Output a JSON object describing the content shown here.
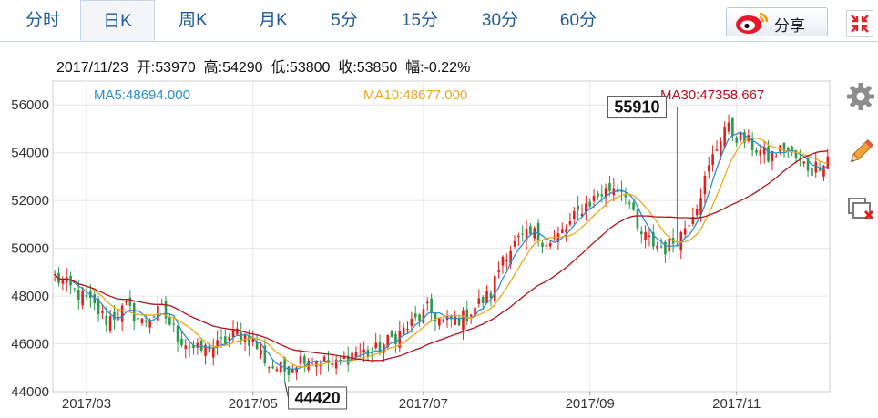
{
  "tabs": [
    {
      "label": "分时",
      "active": false
    },
    {
      "label": "日K",
      "active": true
    },
    {
      "label": "周K",
      "active": false
    },
    {
      "label": "月K",
      "active": false
    },
    {
      "label": "5分",
      "active": false
    },
    {
      "label": "15分",
      "active": false
    },
    {
      "label": "30分",
      "active": false
    },
    {
      "label": "60分",
      "active": false
    }
  ],
  "share": {
    "label": "分享",
    "icon": "weibo-icon"
  },
  "fullscreen": {
    "icon": "fullscreen-icon"
  },
  "side_tools": [
    {
      "icon": "gear-icon"
    },
    {
      "icon": "pencil-icon"
    },
    {
      "icon": "window-close-icon"
    }
  ],
  "info": {
    "date": "2017/11/23",
    "open": "开:53970",
    "high": "高:54290",
    "low": "低:53800",
    "close": "收:53850",
    "change": "幅:-0.22%"
  },
  "colors": {
    "up": "#e0201f",
    "down": "#2a9a4a",
    "ma5": "#2a8fc7",
    "ma10": "#e8a91d",
    "ma30": "#b0131d",
    "grid": "#e6e6e6",
    "tab_text": "#1f5a9a"
  },
  "chart_data": {
    "type": "candlestick",
    "ma_labels": {
      "ma5": "MA5:48694.000",
      "ma10": "MA10:48677.000",
      "ma30": "MA30:47358.667"
    },
    "y_ticks": [
      56000,
      54000,
      52000,
      50000,
      48000,
      46000,
      44000
    ],
    "ylim": [
      44000,
      57000
    ],
    "x_ticks": [
      "2017/03",
      "2017/05",
      "2017/07",
      "2017/09",
      "2017/11"
    ],
    "x_tick_index": [
      8,
      50,
      93,
      135,
      172
    ],
    "annotations": {
      "high": {
        "label": "55910",
        "index": 157,
        "value": 55910
      },
      "low": {
        "label": "44420",
        "index": 58,
        "value": 44420
      }
    },
    "anchors": [
      [
        0,
        48800
      ],
      [
        5,
        48200
      ],
      [
        9,
        47700
      ],
      [
        13,
        47000
      ],
      [
        18,
        47500
      ],
      [
        22,
        46900
      ],
      [
        27,
        47400
      ],
      [
        31,
        46300
      ],
      [
        36,
        45700
      ],
      [
        41,
        45900
      ],
      [
        46,
        46500
      ],
      [
        50,
        46100
      ],
      [
        54,
        45100
      ],
      [
        58,
        44900
      ],
      [
        63,
        45500
      ],
      [
        67,
        45300
      ],
      [
        71,
        45100
      ],
      [
        76,
        45700
      ],
      [
        80,
        45600
      ],
      [
        85,
        46200
      ],
      [
        89,
        46700
      ],
      [
        94,
        47400
      ],
      [
        98,
        46900
      ],
      [
        103,
        47100
      ],
      [
        107,
        47700
      ],
      [
        110,
        48100
      ],
      [
        113,
        49700
      ],
      [
        117,
        50300
      ],
      [
        121,
        50600
      ],
      [
        125,
        50200
      ],
      [
        129,
        50800
      ],
      [
        133,
        51700
      ],
      [
        137,
        52200
      ],
      [
        141,
        52600
      ],
      [
        144,
        52400
      ],
      [
        147,
        50700
      ],
      [
        151,
        50200
      ],
      [
        154,
        50000
      ],
      [
        158,
        50600
      ],
      [
        162,
        51900
      ],
      [
        166,
        53800
      ],
      [
        169,
        55100
      ],
      [
        172,
        54700
      ],
      [
        176,
        54300
      ],
      [
        180,
        53800
      ],
      [
        184,
        54200
      ],
      [
        188,
        53600
      ],
      [
        191,
        53300
      ],
      [
        195,
        53850
      ]
    ],
    "n_days": 196
  }
}
